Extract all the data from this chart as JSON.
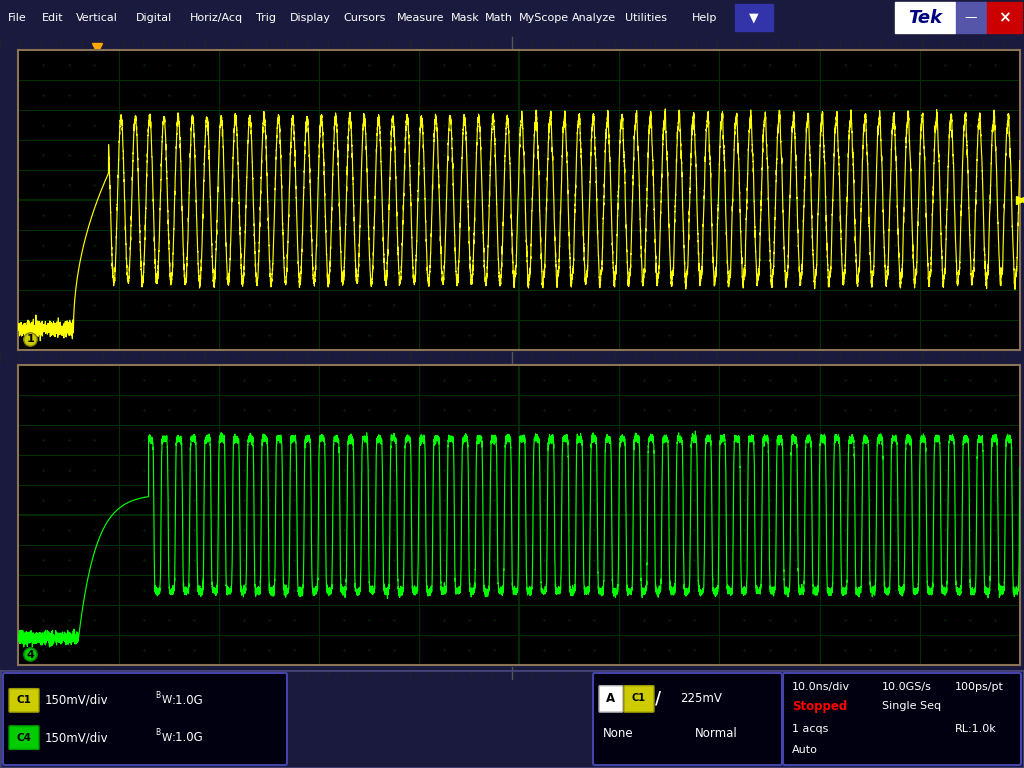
{
  "bg_color": "#000000",
  "menubar_color": "#000080",
  "ch1_color": "#ffff00",
  "ch4_color": "#00ff00",
  "border_color": "#8B7355",
  "status_bg": "#0a0a2e",
  "ch1_scale": "150mV/div",
  "ch4_scale": "150mV/div",
  "ch1_bw": "1.0G",
  "ch4_bw": "1.0G",
  "time_div": "10.0ns/div",
  "sample_rate": "10.0GS/s",
  "pts": "100ps/pt",
  "trigger_level": "225mV",
  "trig_type": "None",
  "trig_mode": "Normal",
  "acqs": "1 acqs",
  "rl": "RL:1.0k",
  "status": "Stopped",
  "seq": "Single Seq",
  "auto": "Auto",
  "menu_items": [
    "File",
    "Edit",
    "Vertical",
    "Digital",
    "Horiz/Acq",
    "Trig",
    "Display",
    "Cursors",
    "Measure",
    "Mask",
    "Math",
    "MyScope",
    "Analyze",
    "Utilities",
    "Help"
  ],
  "tek_logo": "Tek"
}
